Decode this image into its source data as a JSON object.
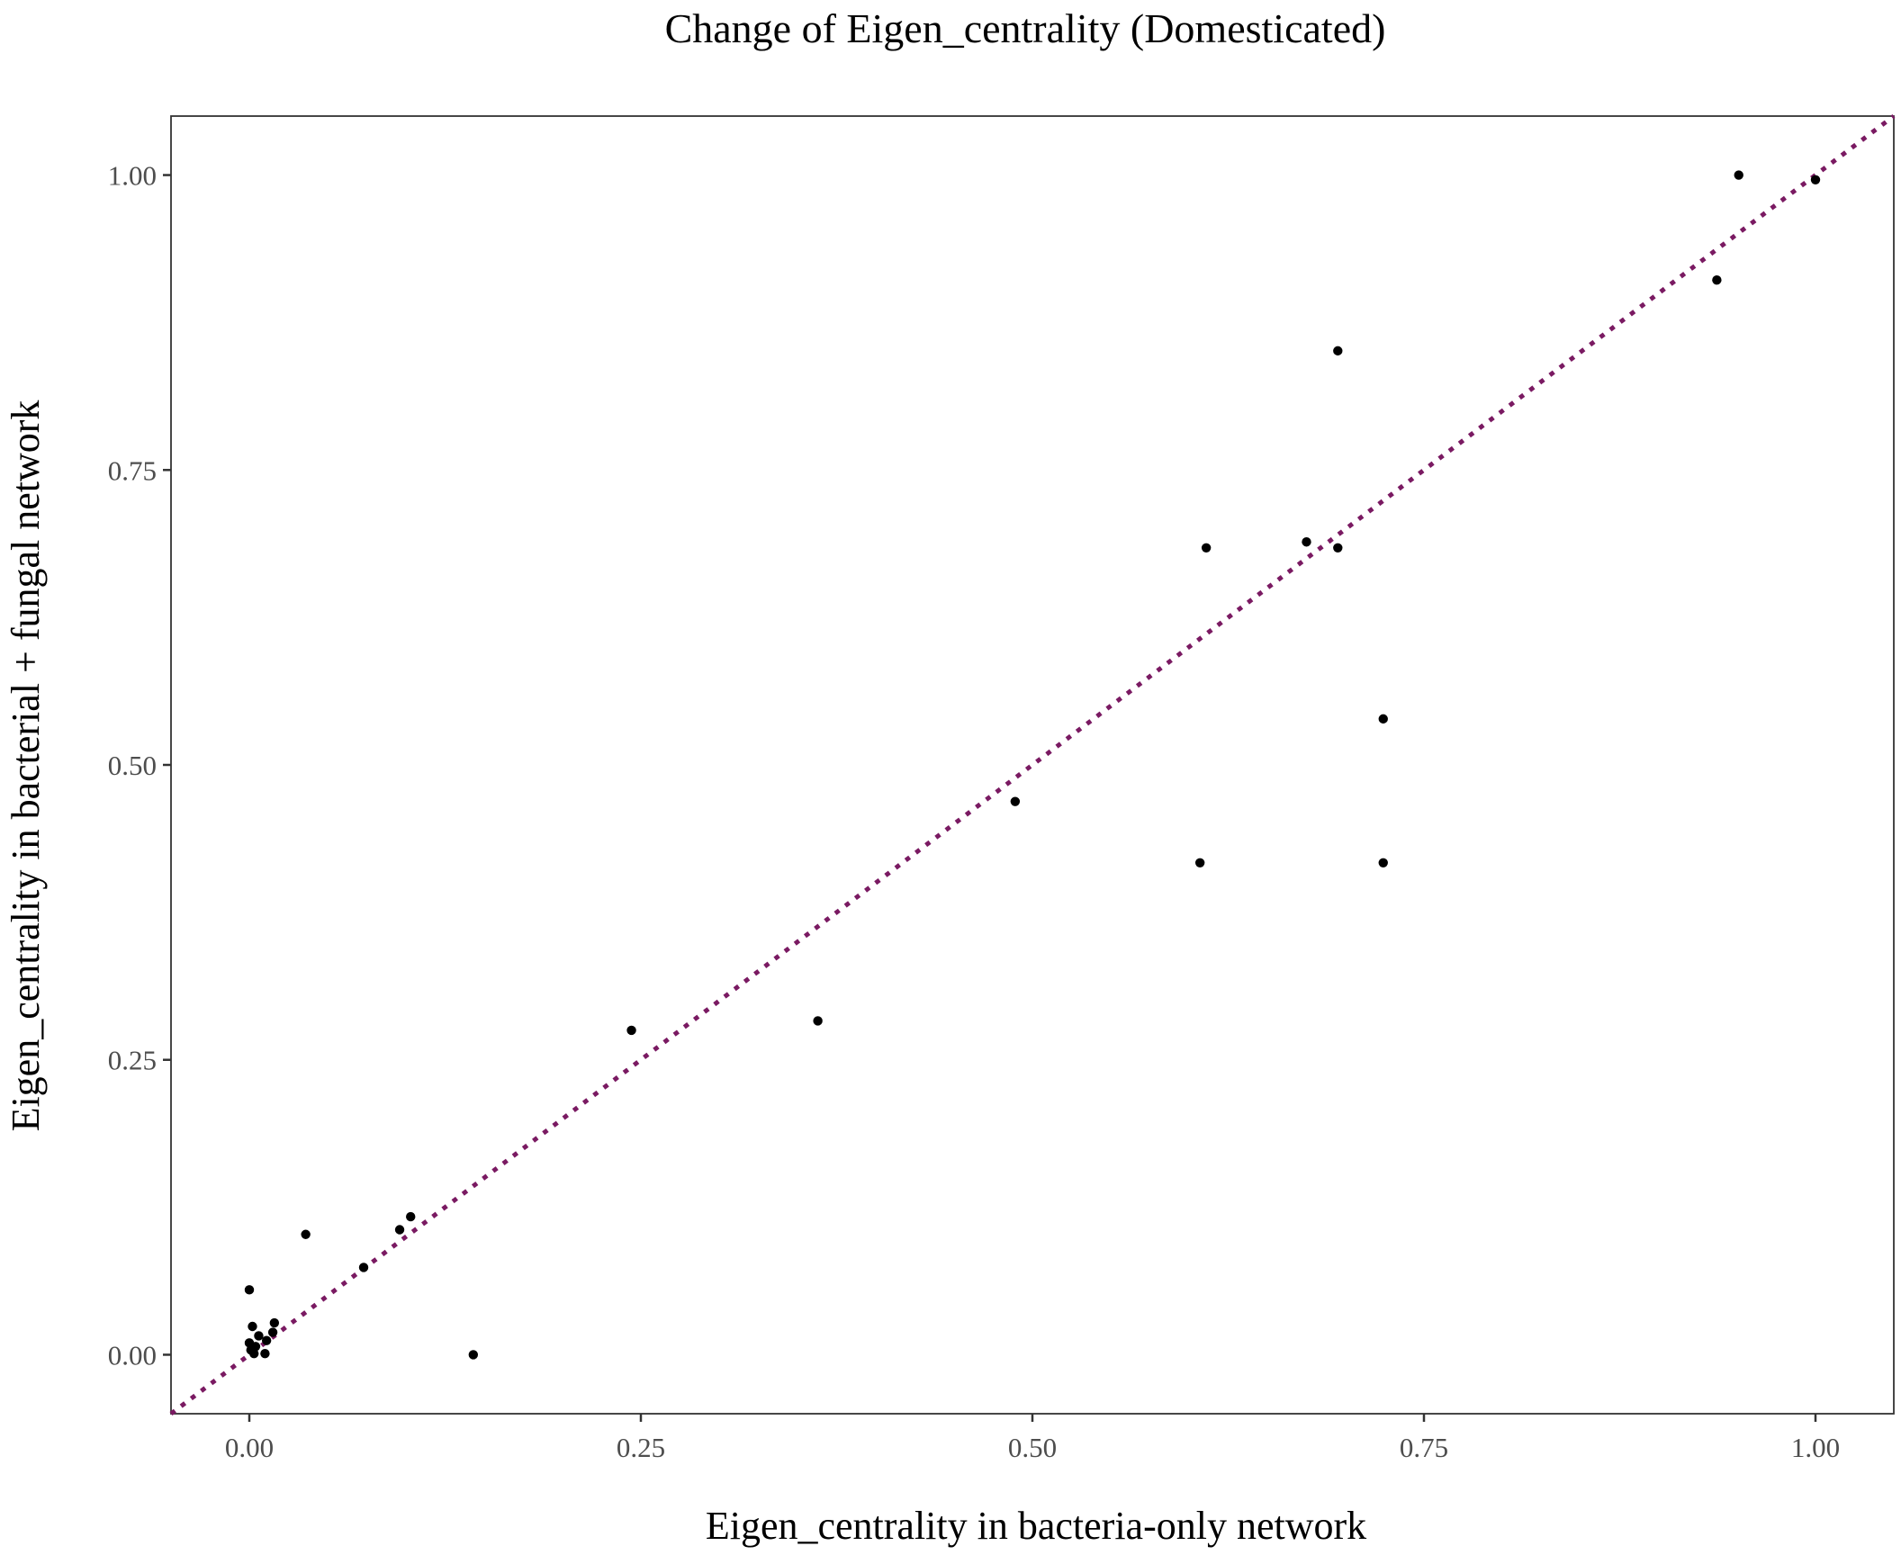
{
  "chart_data": {
    "type": "scatter",
    "title": "Change of Eigen_centrality (Domesticated)",
    "xlabel": "Eigen_centrality in bacteria-only network",
    "ylabel": "Eigen_centrality in bacterial + fungal network",
    "xlim": [
      -0.05,
      1.05
    ],
    "ylim": [
      -0.05,
      1.05
    ],
    "x_ticks": [
      0.0,
      0.25,
      0.5,
      0.75,
      1.0
    ],
    "x_tick_labels": [
      "0.00",
      "0.25",
      "0.50",
      "0.75",
      "1.00"
    ],
    "y_ticks": [
      0.0,
      0.25,
      0.5,
      0.75,
      1.0
    ],
    "y_tick_labels": [
      "0.00",
      "0.25",
      "0.50",
      "0.75",
      "1.00"
    ],
    "grid": false,
    "reference_line": {
      "slope": 1,
      "intercept": 0,
      "style": "dotted",
      "color": "#7a1a62"
    },
    "point_color": "#000000",
    "points": [
      {
        "x": 0.0,
        "y": 0.055
      },
      {
        "x": 0.0,
        "y": 0.01
      },
      {
        "x": 0.001,
        "y": 0.004
      },
      {
        "x": 0.002,
        "y": 0.024
      },
      {
        "x": 0.003,
        "y": 0.001
      },
      {
        "x": 0.004,
        "y": 0.007
      },
      {
        "x": 0.006,
        "y": 0.016
      },
      {
        "x": 0.01,
        "y": 0.001
      },
      {
        "x": 0.011,
        "y": 0.012
      },
      {
        "x": 0.015,
        "y": 0.019
      },
      {
        "x": 0.016,
        "y": 0.027
      },
      {
        "x": 0.036,
        "y": 0.102
      },
      {
        "x": 0.073,
        "y": 0.074
      },
      {
        "x": 0.096,
        "y": 0.106
      },
      {
        "x": 0.103,
        "y": 0.117
      },
      {
        "x": 0.143,
        "y": 0.0
      },
      {
        "x": 0.244,
        "y": 0.275
      },
      {
        "x": 0.363,
        "y": 0.283
      },
      {
        "x": 0.489,
        "y": 0.469
      },
      {
        "x": 0.607,
        "y": 0.417
      },
      {
        "x": 0.611,
        "y": 0.684
      },
      {
        "x": 0.675,
        "y": 0.689
      },
      {
        "x": 0.695,
        "y": 0.684
      },
      {
        "x": 0.695,
        "y": 0.851
      },
      {
        "x": 0.724,
        "y": 0.539
      },
      {
        "x": 0.724,
        "y": 0.417
      },
      {
        "x": 0.937,
        "y": 0.911
      },
      {
        "x": 0.951,
        "y": 1.0
      },
      {
        "x": 1.0,
        "y": 0.996
      }
    ]
  }
}
